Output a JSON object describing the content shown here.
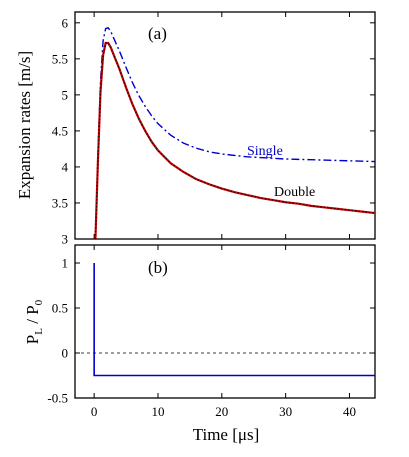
{
  "chart_data": [
    {
      "panel_label": "(a)",
      "type": "line",
      "ylabel": "Expansion rates  [m/s]",
      "xlim": [
        -3,
        44
      ],
      "ylim": [
        3,
        6.15
      ],
      "yticks": [
        "3",
        "3.5",
        "4",
        "4.5",
        "5",
        "5.5",
        "6"
      ],
      "grid": false,
      "series": [
        {
          "name": "Single",
          "style": "dash-dot",
          "color": "#0000cc",
          "x": [
            0.2,
            0.6,
            1.0,
            1.4,
            1.8,
            2.2,
            2.6,
            3.0,
            4,
            5,
            6,
            7,
            8,
            9,
            10,
            12,
            14,
            16,
            18,
            20,
            22,
            24,
            26,
            28,
            30,
            32,
            34,
            36,
            38,
            40,
            42,
            44
          ],
          "y": [
            3.0,
            4.2,
            5.2,
            5.75,
            5.92,
            5.93,
            5.88,
            5.8,
            5.6,
            5.38,
            5.17,
            4.99,
            4.84,
            4.71,
            4.6,
            4.44,
            4.33,
            4.26,
            4.21,
            4.18,
            4.16,
            4.14,
            4.13,
            4.12,
            4.11,
            4.105,
            4.1,
            4.095,
            4.09,
            4.085,
            4.08,
            4.075
          ]
        },
        {
          "name": "Double",
          "style": "solid+dotted",
          "color": "#cc0000",
          "overlay_color": "#111111",
          "x": [
            0.2,
            0.6,
            1.0,
            1.4,
            1.8,
            2.2,
            2.6,
            3.0,
            4,
            5,
            6,
            7,
            8,
            9,
            10,
            12,
            14,
            16,
            18,
            20,
            22,
            24,
            26,
            28,
            30,
            32,
            34,
            36,
            38,
            40,
            42,
            44
          ],
          "y": [
            3.0,
            4.1,
            5.05,
            5.55,
            5.72,
            5.72,
            5.66,
            5.57,
            5.35,
            5.1,
            4.87,
            4.67,
            4.5,
            4.35,
            4.23,
            4.05,
            3.93,
            3.83,
            3.76,
            3.7,
            3.65,
            3.61,
            3.57,
            3.54,
            3.51,
            3.49,
            3.46,
            3.44,
            3.42,
            3.4,
            3.38,
            3.36
          ]
        }
      ]
    },
    {
      "panel_label": "(b)",
      "type": "line",
      "ylabel_main": "P",
      "ylabel_sub_num": "L",
      "ylabel_slash": " / P",
      "ylabel_sub_den": "0",
      "xlabel": "Time  [μs]",
      "xlim": [
        -3,
        44
      ],
      "ylim": [
        -0.5,
        1.2
      ],
      "xticks": [
        "0",
        "10",
        "20",
        "30",
        "40"
      ],
      "yticks": [
        "-0.5",
        "0",
        "0.5",
        "1"
      ],
      "reference_line": {
        "y": 0,
        "style": "dashed"
      },
      "series": [
        {
          "style": "solid",
          "color": "#0000cc",
          "x": [
            0,
            0,
            44
          ],
          "y": [
            1.0,
            -0.25,
            -0.25
          ]
        }
      ]
    }
  ]
}
